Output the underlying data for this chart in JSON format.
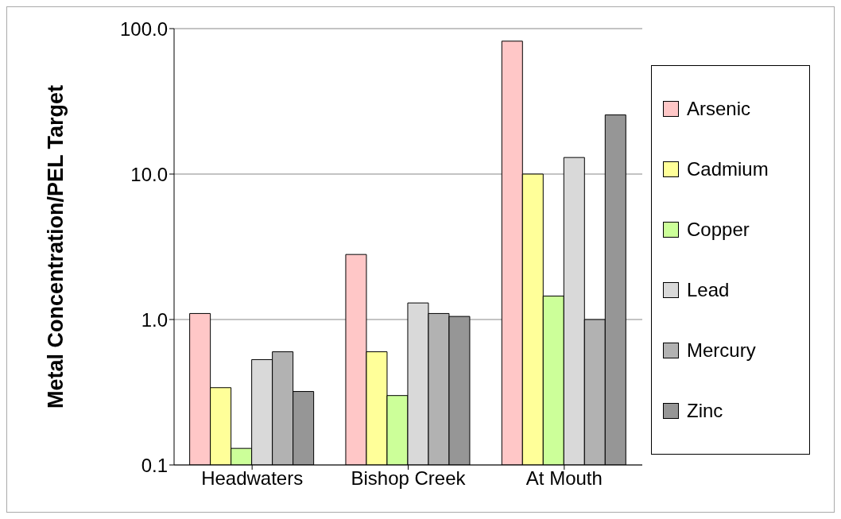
{
  "chart_data": {
    "type": "bar",
    "ylabel": "Metal Concentration/PEL Target",
    "categories": [
      "Headwaters",
      "Bishop Creek",
      "At Mouth"
    ],
    "series": [
      {
        "name": "Arsenic",
        "color": "#ffc7c7",
        "values": [
          1.1,
          2.8,
          82
        ]
      },
      {
        "name": "Cadmium",
        "color": "#ffff99",
        "values": [
          0.34,
          0.6,
          10
        ]
      },
      {
        "name": "Copper",
        "color": "#ccff99",
        "values": [
          0.13,
          0.3,
          1.45
        ]
      },
      {
        "name": "Lead",
        "color": "#d9d9d9",
        "values": [
          0.53,
          1.3,
          13
        ]
      },
      {
        "name": "Mercury",
        "color": "#b2b2b2",
        "values": [
          0.6,
          1.1,
          1.0
        ]
      },
      {
        "name": "Zinc",
        "color": "#969696",
        "values": [
          0.32,
          1.05,
          25.5
        ]
      }
    ],
    "log": true,
    "ylim": [
      0.1,
      100
    ],
    "yticks": [
      {
        "value": 0.1,
        "label": "0.1"
      },
      {
        "value": 1,
        "label": "1.0"
      },
      {
        "value": 10,
        "label": "10.0"
      },
      {
        "value": 100,
        "label": "100.0"
      }
    ],
    "grid": "y",
    "legend": "right"
  }
}
